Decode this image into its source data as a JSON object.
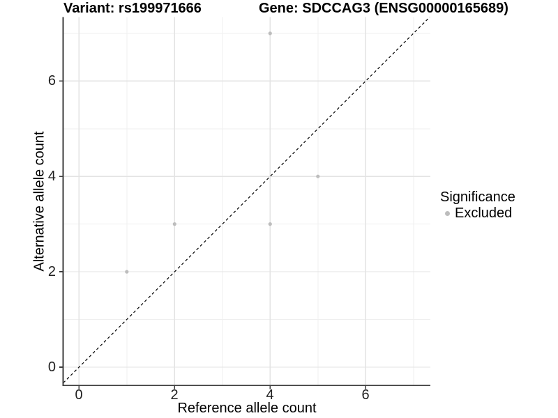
{
  "title": {
    "variant": "Variant: rs199971666",
    "gene": "Gene: SDCCAG3 (ENSG00000165689)"
  },
  "axes": {
    "x_label": "Reference allele count",
    "y_label": "Alternative allele count",
    "x_ticks": [
      "0",
      "2",
      "4",
      "6"
    ],
    "y_ticks": [
      "0",
      "2",
      "4",
      "6"
    ]
  },
  "legend": {
    "title": "Significance",
    "items": [
      {
        "label": "Excluded",
        "color": "#bdbdbd"
      }
    ]
  },
  "chart_data": {
    "type": "scatter",
    "title": "Variant: rs199971666 | Gene: SDCCAG3 (ENSG00000165689)",
    "xlabel": "Reference allele count",
    "ylabel": "Alternative allele count",
    "xlim": [
      -0.35,
      7.35
    ],
    "ylim": [
      -0.35,
      7.35
    ],
    "x_major_ticks": [
      0,
      2,
      4,
      6
    ],
    "y_major_ticks": [
      0,
      2,
      4,
      6
    ],
    "minor_gridlines": [
      1,
      3,
      5,
      7
    ],
    "grid": true,
    "legend_position": "right",
    "reference_line": {
      "type": "identity",
      "style": "dashed",
      "color": "#000000"
    },
    "series": [
      {
        "name": "Excluded",
        "color": "#bdbdbd",
        "points": [
          [
            1,
            2
          ],
          [
            2,
            3
          ],
          [
            4,
            3
          ],
          [
            4,
            7
          ],
          [
            5,
            4
          ]
        ]
      }
    ]
  },
  "colors": {
    "background": "#ffffff",
    "major_grid": "#e3e3e3",
    "minor_grid": "#efefef",
    "axis_line": "#3d3d3d",
    "point": "#bdbdbd",
    "text": "#000000"
  }
}
